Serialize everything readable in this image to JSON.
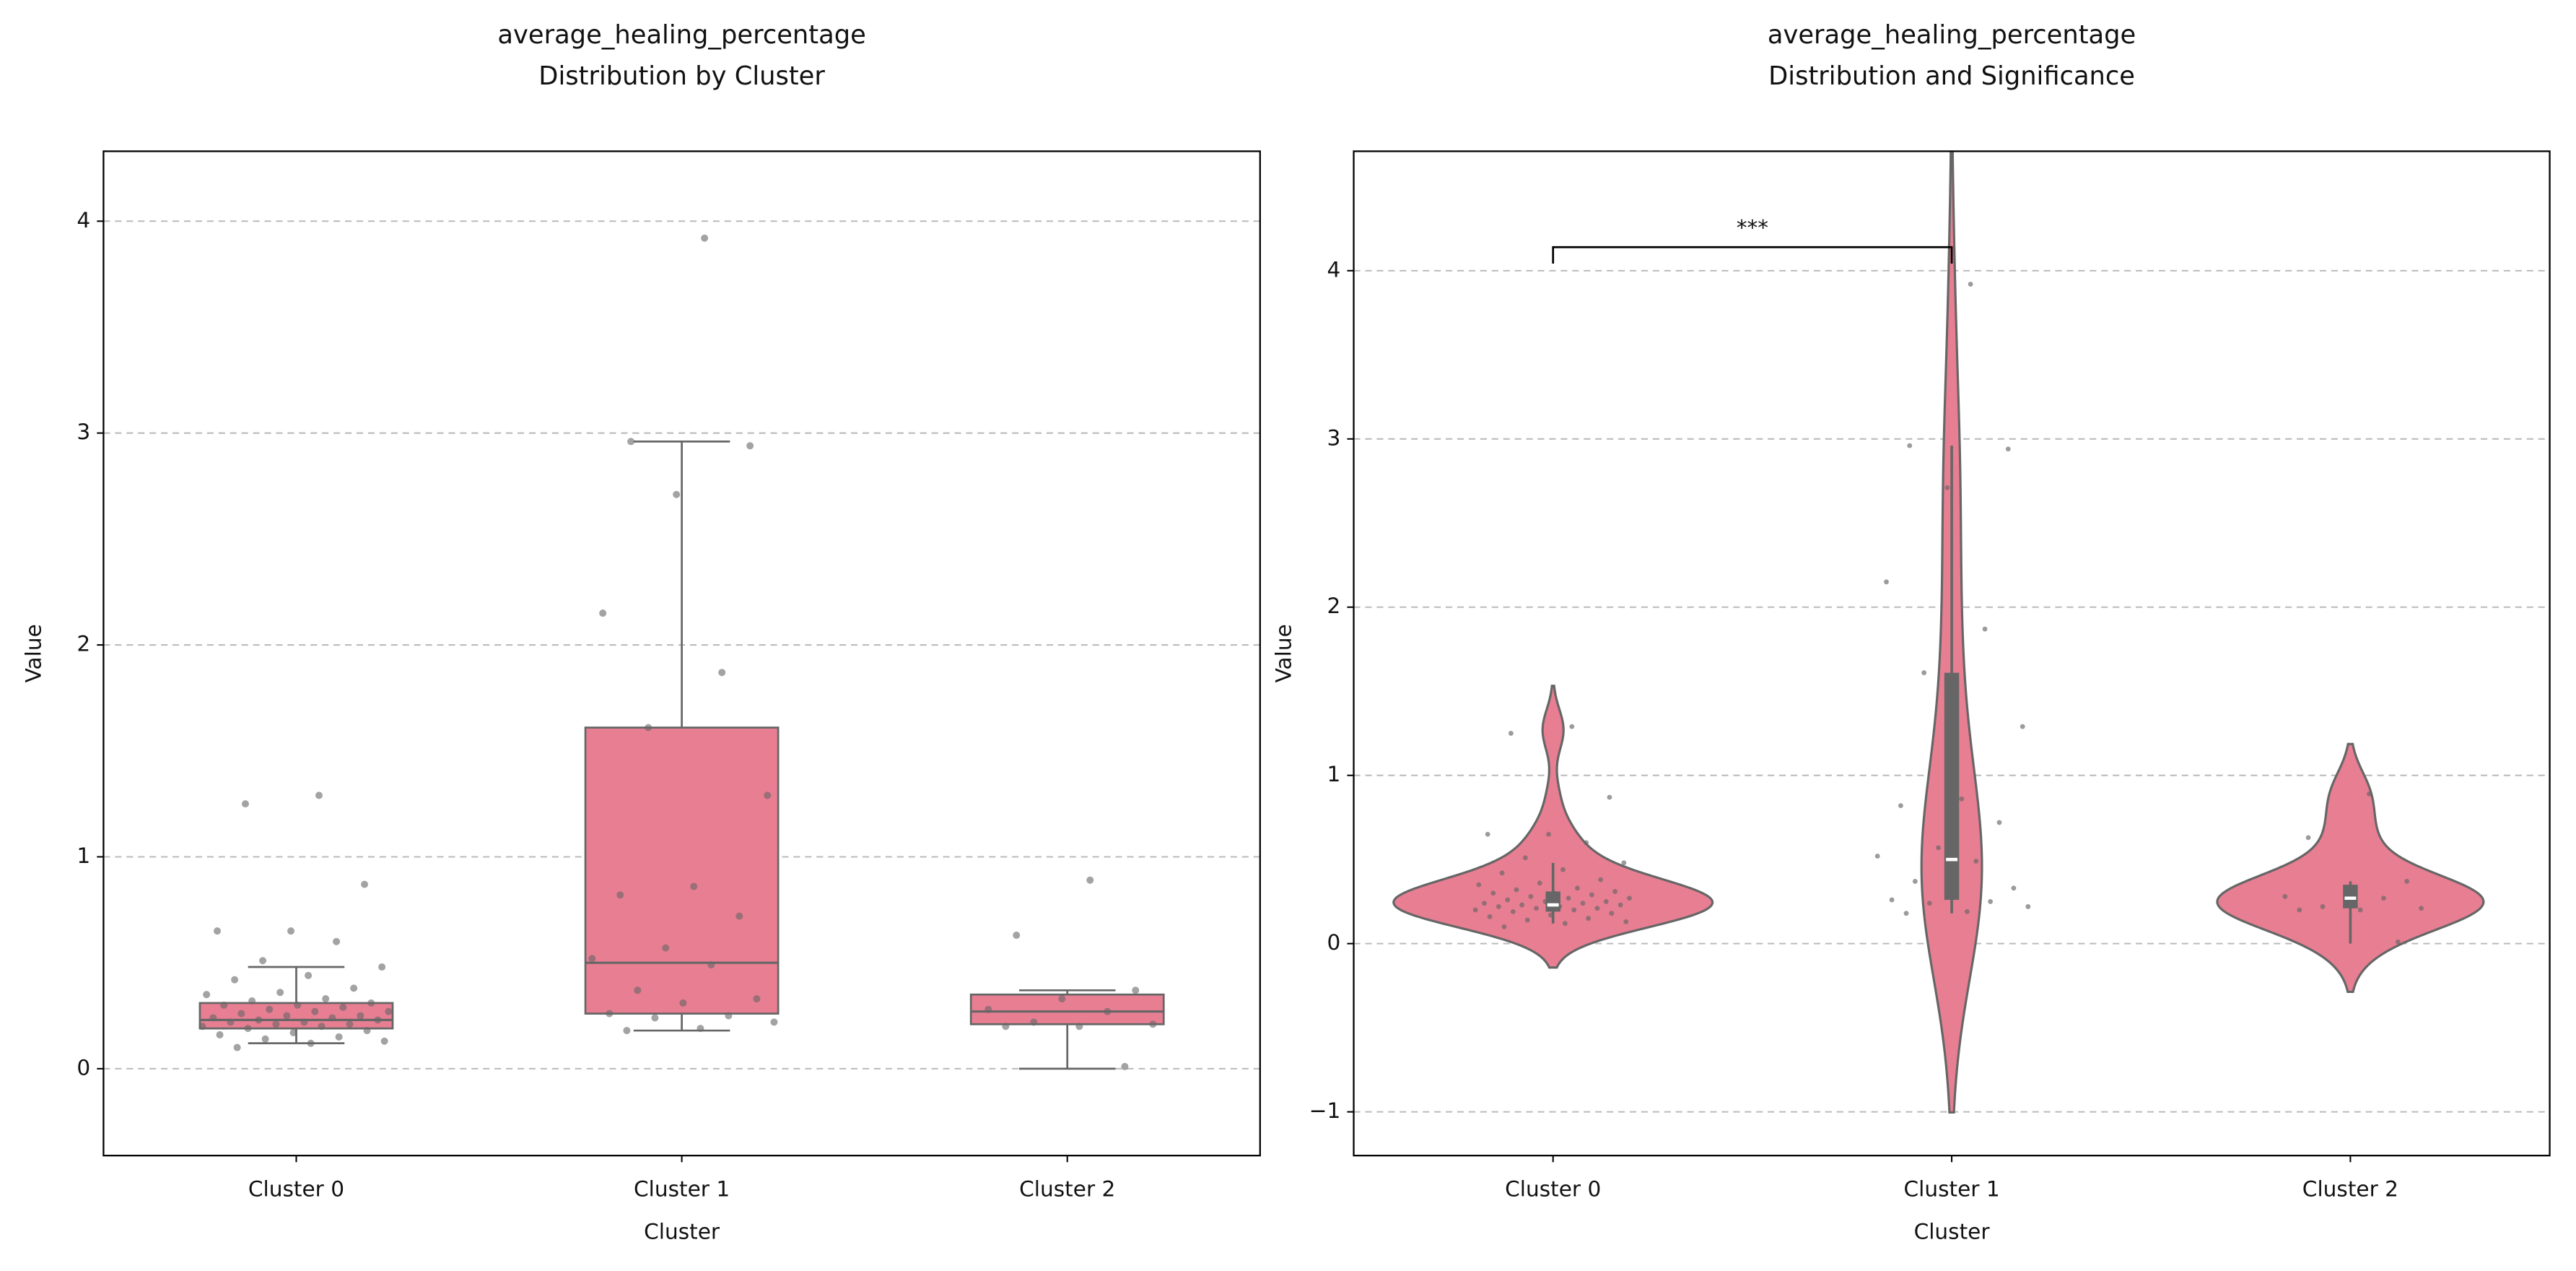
{
  "chart_data": [
    {
      "type": "box",
      "title": "average_healing_percentage",
      "subtitle": "Distribution by Cluster",
      "x_label": "Cluster",
      "y_label": "Value",
      "categories": [
        "Cluster 0",
        "Cluster 1",
        "Cluster 2"
      ],
      "color": "#e87e92",
      "edge_color": "#666666",
      "point_color": "#666666",
      "boxes": [
        {
          "whislo": 0.12,
          "q1": 0.19,
          "med": 0.23,
          "q3": 0.31,
          "whishi": 0.48
        },
        {
          "whislo": 0.18,
          "q1": 0.26,
          "med": 0.5,
          "q3": 1.61,
          "whishi": 2.96
        },
        {
          "whislo": 0.0,
          "q1": 0.21,
          "med": 0.27,
          "q3": 0.35,
          "whishi": 0.37
        }
      ],
      "points": [
        [
          1.29,
          1.25,
          0.87,
          0.65,
          0.65,
          0.6,
          0.51,
          0.48,
          0.44,
          0.42,
          0.38,
          0.36,
          0.35,
          0.33,
          0.32,
          0.31,
          0.3,
          0.3,
          0.29,
          0.28,
          0.27,
          0.27,
          0.26,
          0.25,
          0.25,
          0.24,
          0.24,
          0.23,
          0.23,
          0.22,
          0.22,
          0.21,
          0.21,
          0.2,
          0.2,
          0.19,
          0.18,
          0.17,
          0.16,
          0.15,
          0.14,
          0.13,
          0.12,
          0.1
        ],
        [
          3.92,
          2.96,
          2.94,
          2.71,
          2.15,
          1.87,
          1.61,
          1.29,
          0.86,
          0.82,
          0.72,
          0.57,
          0.52,
          0.49,
          0.37,
          0.33,
          0.31,
          0.26,
          0.25,
          0.24,
          0.22,
          0.19,
          0.18
        ],
        [
          0.89,
          0.63,
          0.37,
          0.33,
          0.28,
          0.27,
          0.22,
          0.21,
          0.2,
          0.2,
          0.01
        ]
      ],
      "ylim": [
        -0.41,
        4.33
      ],
      "yticks": [
        0,
        1,
        2,
        3,
        4
      ],
      "grid": true
    },
    {
      "type": "violin",
      "title": "average_healing_percentage",
      "subtitle": "Distribution and Significance",
      "x_label": "Cluster",
      "y_label": "Value",
      "categories": [
        "Cluster 0",
        "Cluster 1",
        "Cluster 2"
      ],
      "color": "#e87e92",
      "edge_color": "#666666",
      "point_color": "#666666",
      "boxes": [
        {
          "whislo": 0.12,
          "q1": 0.19,
          "med": 0.23,
          "q3": 0.31,
          "whishi": 0.48
        },
        {
          "whislo": 0.18,
          "q1": 0.26,
          "med": 0.5,
          "q3": 1.61,
          "whishi": 2.96
        },
        {
          "whislo": 0.0,
          "q1": 0.21,
          "med": 0.27,
          "q3": 0.35,
          "whishi": 0.37
        }
      ],
      "points": [
        [
          1.29,
          1.25,
          0.87,
          0.65,
          0.65,
          0.6,
          0.51,
          0.48,
          0.44,
          0.42,
          0.38,
          0.36,
          0.35,
          0.33,
          0.32,
          0.31,
          0.3,
          0.3,
          0.29,
          0.28,
          0.27,
          0.27,
          0.26,
          0.25,
          0.25,
          0.24,
          0.24,
          0.23,
          0.23,
          0.22,
          0.22,
          0.21,
          0.21,
          0.2,
          0.2,
          0.19,
          0.18,
          0.17,
          0.16,
          0.15,
          0.14,
          0.13,
          0.12,
          0.1
        ],
        [
          3.92,
          2.96,
          2.94,
          2.71,
          2.15,
          1.87,
          1.61,
          1.29,
          0.86,
          0.82,
          0.72,
          0.57,
          0.52,
          0.49,
          0.37,
          0.33,
          0.31,
          0.26,
          0.25,
          0.24,
          0.22,
          0.19,
          0.18
        ],
        [
          0.89,
          0.63,
          0.37,
          0.33,
          0.28,
          0.27,
          0.22,
          0.21,
          0.2,
          0.2,
          0.01
        ]
      ],
      "annotations": [
        {
          "text": "***",
          "x": [
            "Cluster 0",
            "Cluster 1"
          ],
          "y": 4.14
        }
      ],
      "ylim": [
        -1.26,
        4.71
      ],
      "yticks": [
        {
          "value": -1,
          "label": "−1"
        },
        0,
        1,
        2,
        3,
        4
      ],
      "grid": true
    }
  ]
}
